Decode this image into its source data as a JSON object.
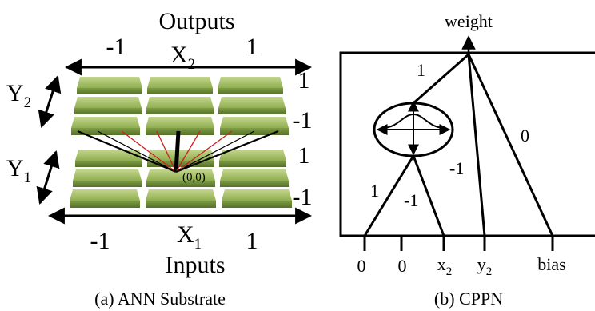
{
  "substrate": {
    "top_title": "Outputs",
    "bottom_title": "Inputs",
    "x2_label": "X",
    "x2_sub": "2",
    "x1_label": "X",
    "x1_sub": "1",
    "y2_label": "Y",
    "y2_sub": "2",
    "y1_label": "Y",
    "y1_sub": "1",
    "top_left_tick": "-1",
    "top_right_tick": "1",
    "bottom_left_tick": "-1",
    "bottom_right_tick": "1",
    "right_ticks_upper": [
      "1",
      "-1"
    ],
    "right_ticks_lower": [
      "1",
      "-1"
    ],
    "origin_label": "(0,0)",
    "node_color": "#8aa84c",
    "caption": "(a) ANN Substrate"
  },
  "cppn": {
    "output_label": "weight",
    "edge_weights": [
      "1",
      "0",
      "-1",
      "1",
      "-1"
    ],
    "inputs": [
      {
        "label": "0",
        "sub": ""
      },
      {
        "label": "0",
        "sub": ""
      },
      {
        "label": "x",
        "sub": "2"
      },
      {
        "label": "y",
        "sub": "2"
      },
      {
        "label": "bias",
        "sub": ""
      }
    ],
    "caption": "(b) CPPN"
  }
}
